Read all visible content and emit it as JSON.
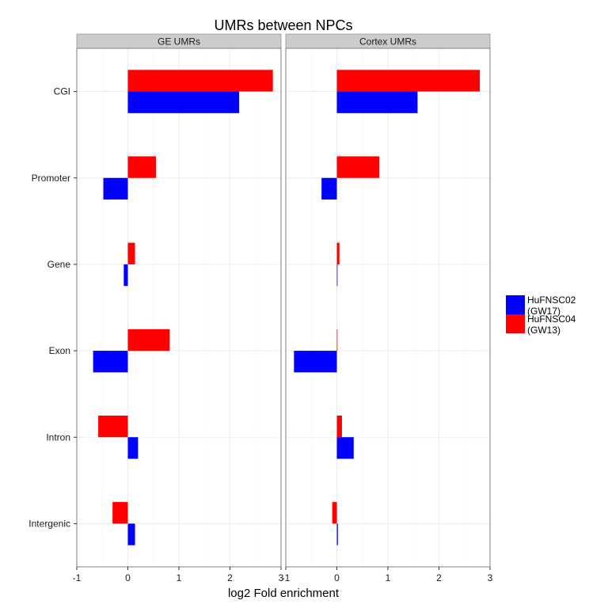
{
  "chart_data": {
    "type": "bar",
    "orientation": "horizontal",
    "title": "UMRs between NPCs",
    "xlabel": "log2 Fold enrichment",
    "ylabel": "",
    "xlim": [
      -1,
      3
    ],
    "xticks": [
      "-1",
      "0",
      "1",
      "2",
      "3"
    ],
    "grid": true,
    "legend_position": "right",
    "categories": [
      "CGI",
      "Promoter",
      "Gene",
      "Exon",
      "Intron",
      "Intergenic"
    ],
    "series_meta": [
      {
        "key": "s1",
        "label_lines": [
          "HuFNSC02",
          "(GW17)"
        ],
        "color": "#0000ff"
      },
      {
        "key": "s2",
        "label_lines": [
          "HuFNSC04",
          "(GW13)"
        ],
        "color": "#ff0000"
      }
    ],
    "panels": [
      {
        "name": "GE UMRs",
        "series": [
          {
            "key": "s1",
            "values": [
              2.18,
              -0.48,
              -0.08,
              -0.68,
              0.2,
              0.14
            ]
          },
          {
            "key": "s2",
            "values": [
              2.84,
              0.55,
              0.14,
              0.82,
              -0.58,
              -0.3
            ]
          }
        ]
      },
      {
        "name": "Cortex UMRs",
        "series": [
          {
            "key": "s1",
            "values": [
              1.58,
              -0.3,
              0.0,
              -0.84,
              0.33,
              0.02
            ]
          },
          {
            "key": "s2",
            "values": [
              2.8,
              0.83,
              0.05,
              0.01,
              0.1,
              -0.09
            ]
          }
        ]
      }
    ]
  }
}
